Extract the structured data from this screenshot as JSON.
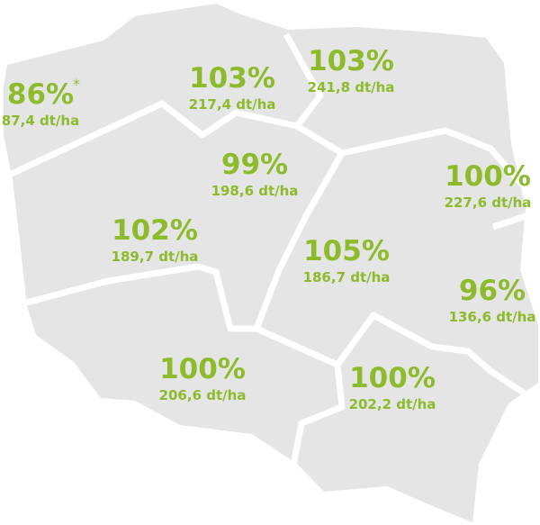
{
  "regions": [
    {
      "percent": "86%",
      "note": "*",
      "yield": "87,4 dt/ha"
    },
    {
      "percent": "103%",
      "yield": "217,4 dt/ha"
    },
    {
      "percent": "103%",
      "yield": "241,8 dt/ha"
    },
    {
      "percent": "99%",
      "yield": "198,6 dt/ha"
    },
    {
      "percent": "100%",
      "yield": "227,6 dt/ha"
    },
    {
      "percent": "102%",
      "yield": "189,7 dt/ha"
    },
    {
      "percent": "105%",
      "yield": "186,7 dt/ha"
    },
    {
      "percent": "96%",
      "yield": "136,6 dt/ha"
    },
    {
      "percent": "100%",
      "yield": "206,6 dt/ha"
    },
    {
      "percent": "100%",
      "yield": "202,2 dt/ha"
    }
  ]
}
